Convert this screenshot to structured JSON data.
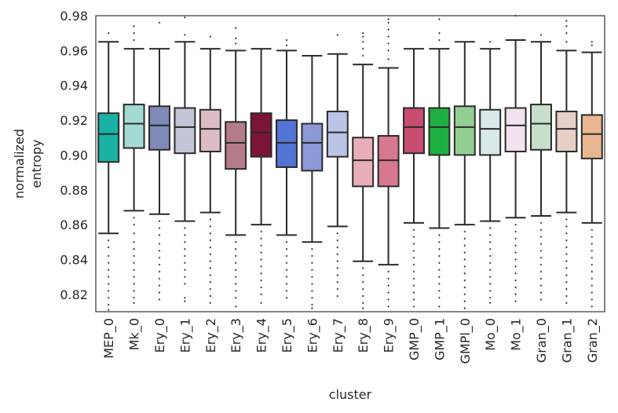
{
  "chart_data": {
    "type": "box",
    "xlabel": "cluster",
    "ylabel_lines": [
      "normalized",
      "entropy"
    ],
    "ylim": [
      0.81,
      0.98
    ],
    "yticks": [
      0.82,
      0.84,
      0.86,
      0.88,
      0.9,
      0.92,
      0.94,
      0.96,
      0.98
    ],
    "ytick_labels": [
      "0.82",
      "0.84",
      "0.86",
      "0.88",
      "0.90",
      "0.92",
      "0.94",
      "0.96",
      "0.98"
    ],
    "grid": false,
    "categories": [
      "MEP_0",
      "Mk_0",
      "Ery_0",
      "Ery_1",
      "Ery_2",
      "Ery_3",
      "Ery_4",
      "Ery_5",
      "Ery_6",
      "Ery_7",
      "Ery_8",
      "Ery_9",
      "GMP_0",
      "GMP_1",
      "GMPl_0",
      "Mo_0",
      "Mo_1",
      "Gran_0",
      "Gran_1",
      "Gran_2"
    ],
    "colors": [
      "#19b2a4",
      "#a3dbd4",
      "#7f8ab8",
      "#c3c5d8",
      "#dcbcc2",
      "#b47c88",
      "#7b1439",
      "#5374d4",
      "#8b99d8",
      "#bac4e6",
      "#e7aeba",
      "#d7788e",
      "#c84d70",
      "#1db041",
      "#93cf93",
      "#d8e9e7",
      "#f3e3ee",
      "#c7dfcb",
      "#e6cfc7",
      "#e8b792"
    ],
    "boxes": [
      {
        "q1": 0.896,
        "median": 0.912,
        "q3": 0.924,
        "whisker_low": 0.855,
        "whisker_high": 0.965,
        "outliers_low": [
          0.851,
          0.847,
          0.842,
          0.838,
          0.834,
          0.83,
          0.826,
          0.822,
          0.818,
          0.814,
          0.811
        ],
        "outliers_high": [
          0.97
        ]
      },
      {
        "q1": 0.904,
        "median": 0.918,
        "q3": 0.929,
        "whisker_low": 0.868,
        "whisker_high": 0.961,
        "outliers_low": [
          0.864,
          0.86,
          0.855,
          0.85,
          0.846,
          0.842,
          0.838,
          0.834,
          0.83,
          0.826,
          0.822,
          0.818,
          0.815
        ],
        "outliers_high": [
          0.966,
          0.97,
          0.974
        ]
      },
      {
        "q1": 0.903,
        "median": 0.917,
        "q3": 0.928,
        "whisker_low": 0.866,
        "whisker_high": 0.961,
        "outliers_low": [
          0.862,
          0.858,
          0.854,
          0.849,
          0.845,
          0.841,
          0.837,
          0.833,
          0.829,
          0.825,
          0.821,
          0.817
        ],
        "outliers_high": [
          0.976
        ]
      },
      {
        "q1": 0.901,
        "median": 0.916,
        "q3": 0.927,
        "whisker_low": 0.862,
        "whisker_high": 0.965,
        "outliers_low": [
          0.858,
          0.854,
          0.85,
          0.846,
          0.842,
          0.838,
          0.834,
          0.83,
          0.826,
          0.818,
          0.816
        ],
        "outliers_high": [
          0.969,
          0.979
        ]
      },
      {
        "q1": 0.902,
        "median": 0.915,
        "q3": 0.926,
        "whisker_low": 0.867,
        "whisker_high": 0.961,
        "outliers_low": [
          0.863,
          0.859,
          0.855,
          0.851,
          0.847,
          0.843,
          0.839,
          0.835,
          0.831,
          0.827,
          0.823,
          0.819,
          0.815
        ],
        "outliers_high": [
          0.968
        ]
      },
      {
        "q1": 0.892,
        "median": 0.907,
        "q3": 0.919,
        "whisker_low": 0.854,
        "whisker_high": 0.96,
        "outliers_low": [
          0.85,
          0.846,
          0.842,
          0.838,
          0.834,
          0.83,
          0.826,
          0.822,
          0.818,
          0.813
        ],
        "outliers_high": [
          0.964,
          0.967,
          0.973
        ]
      },
      {
        "q1": 0.899,
        "median": 0.913,
        "q3": 0.924,
        "whisker_low": 0.86,
        "whisker_high": 0.961,
        "outliers_low": [
          0.856,
          0.852,
          0.848,
          0.844,
          0.84,
          0.836,
          0.832,
          0.828,
          0.824,
          0.82,
          0.815
        ]
      },
      {
        "q1": 0.893,
        "median": 0.907,
        "q3": 0.92,
        "whisker_low": 0.854,
        "whisker_high": 0.96,
        "outliers_low": [
          0.85,
          0.846,
          0.842,
          0.838,
          0.834,
          0.83,
          0.826,
          0.822,
          0.818
        ],
        "outliers_high": [
          0.963,
          0.966
        ]
      },
      {
        "q1": 0.891,
        "median": 0.907,
        "q3": 0.918,
        "whisker_low": 0.85,
        "whisker_high": 0.957,
        "outliers_low": [
          0.846,
          0.842,
          0.838,
          0.834,
          0.83,
          0.826,
          0.822,
          0.818,
          0.814,
          0.812
        ]
      },
      {
        "q1": 0.899,
        "median": 0.913,
        "q3": 0.925,
        "whisker_low": 0.859,
        "whisker_high": 0.958,
        "outliers_low": [
          0.855,
          0.851,
          0.847,
          0.843,
          0.839,
          0.835,
          0.831,
          0.827,
          0.823,
          0.819
        ],
        "outliers_high": [
          0.969
        ]
      },
      {
        "q1": 0.882,
        "median": 0.897,
        "q3": 0.91,
        "whisker_low": 0.839,
        "whisker_high": 0.952,
        "outliers_low": [
          0.835,
          0.831,
          0.827,
          0.823,
          0.819,
          0.815,
          0.812
        ],
        "outliers_high": [
          0.957,
          0.961,
          0.965,
          0.968,
          0.97
        ]
      },
      {
        "q1": 0.882,
        "median": 0.897,
        "q3": 0.911,
        "whisker_low": 0.837,
        "whisker_high": 0.95,
        "outliers_low": [
          0.833,
          0.829,
          0.825,
          0.821,
          0.817,
          0.813
        ],
        "outliers_high": [
          0.955,
          0.96,
          0.964,
          0.968,
          0.972,
          0.976,
          0.978
        ]
      },
      {
        "q1": 0.901,
        "median": 0.916,
        "q3": 0.927,
        "whisker_low": 0.861,
        "whisker_high": 0.961,
        "outliers_low": [
          0.857,
          0.853,
          0.849,
          0.845,
          0.841,
          0.837,
          0.833,
          0.829,
          0.825,
          0.821,
          0.817,
          0.813
        ]
      },
      {
        "q1": 0.9,
        "median": 0.916,
        "q3": 0.927,
        "whisker_low": 0.858,
        "whisker_high": 0.961,
        "outliers_low": [
          0.854,
          0.85,
          0.846,
          0.842,
          0.838,
          0.834,
          0.83,
          0.826,
          0.822,
          0.818,
          0.813
        ],
        "outliers_high": [
          0.966,
          0.97,
          0.978
        ]
      },
      {
        "q1": 0.9,
        "median": 0.916,
        "q3": 0.928,
        "whisker_low": 0.86,
        "whisker_high": 0.965,
        "outliers_low": [
          0.856,
          0.852,
          0.848,
          0.844,
          0.84,
          0.836,
          0.832,
          0.828,
          0.824,
          0.82,
          0.816,
          0.812
        ]
      },
      {
        "q1": 0.9,
        "median": 0.915,
        "q3": 0.926,
        "whisker_low": 0.862,
        "whisker_high": 0.961,
        "outliers_low": [
          0.858,
          0.854,
          0.85,
          0.846,
          0.842,
          0.838,
          0.834,
          0.83,
          0.826,
          0.822,
          0.818,
          0.815
        ],
        "outliers_high": [
          0.965
        ]
      },
      {
        "q1": 0.902,
        "median": 0.917,
        "q3": 0.927,
        "whisker_low": 0.864,
        "whisker_high": 0.966,
        "outliers_low": [
          0.86,
          0.856,
          0.852,
          0.848,
          0.844,
          0.84,
          0.836,
          0.832,
          0.828,
          0.824,
          0.82,
          0.816
        ],
        "outliers_high": [
          0.98
        ]
      },
      {
        "q1": 0.903,
        "median": 0.918,
        "q3": 0.929,
        "whisker_low": 0.865,
        "whisker_high": 0.965,
        "outliers_low": [
          0.861,
          0.857,
          0.853,
          0.849,
          0.845,
          0.841,
          0.837,
          0.833,
          0.829,
          0.825,
          0.821,
          0.817
        ],
        "outliers_high": [
          0.969
        ]
      },
      {
        "q1": 0.902,
        "median": 0.915,
        "q3": 0.925,
        "whisker_low": 0.867,
        "whisker_high": 0.96,
        "outliers_low": [
          0.863,
          0.859,
          0.855,
          0.851,
          0.847,
          0.843,
          0.839,
          0.835,
          0.831,
          0.827,
          0.823,
          0.819,
          0.815
        ],
        "outliers_high": [
          0.965,
          0.97,
          0.974,
          0.977
        ]
      },
      {
        "q1": 0.898,
        "median": 0.912,
        "q3": 0.923,
        "whisker_low": 0.861,
        "whisker_high": 0.959,
        "outliers_low": [
          0.857,
          0.853,
          0.849,
          0.845,
          0.841,
          0.837,
          0.833,
          0.829,
          0.825,
          0.821,
          0.817,
          0.813
        ],
        "outliers_high": [
          0.963,
          0.965
        ]
      }
    ]
  }
}
